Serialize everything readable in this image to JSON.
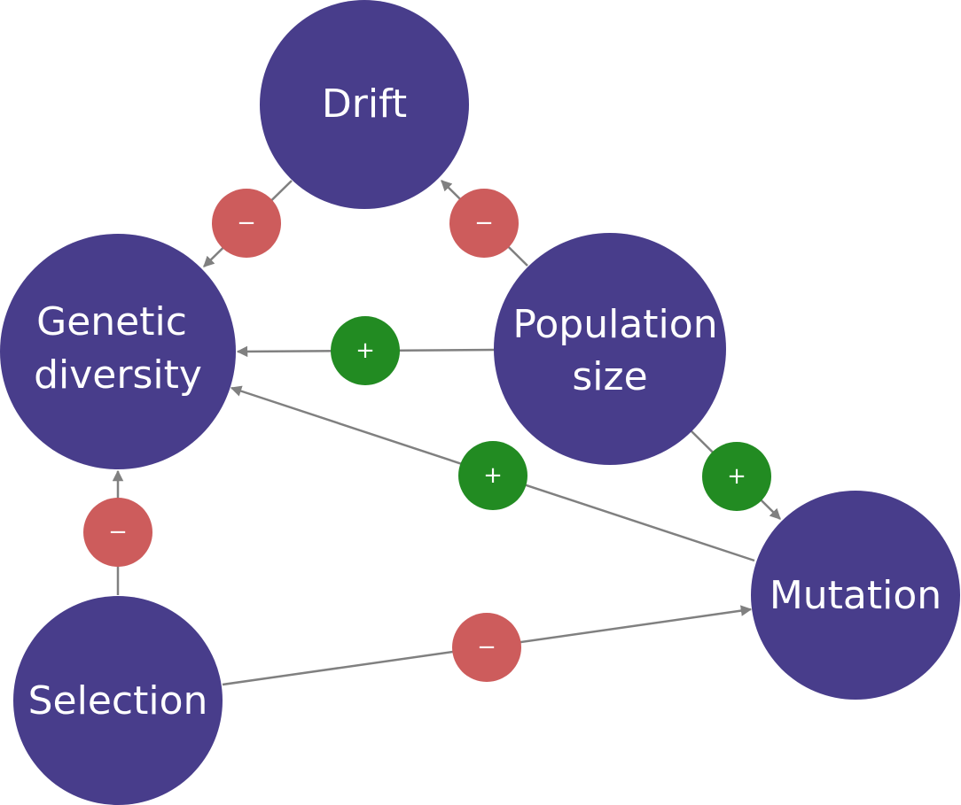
{
  "colors": {
    "node_fill": "#483D8B",
    "negative": "#CD5C5C",
    "positive": "#228B22",
    "edge": "#808080",
    "label": "#FFFFFF"
  },
  "nodes": {
    "drift": {
      "lines": [
        "Drift"
      ]
    },
    "genetic_diversity": {
      "lines": [
        "Genetic",
        "diversity"
      ]
    },
    "population_size": {
      "lines": [
        "Population",
        "size"
      ]
    },
    "mutation": {
      "lines": [
        "Mutation"
      ]
    },
    "selection": {
      "lines": [
        "Selection"
      ]
    }
  },
  "edges": [
    {
      "from": "drift",
      "to": "genetic_diversity",
      "sign": "−",
      "polarity": "negative"
    },
    {
      "from": "population_size",
      "to": "drift",
      "sign": "−",
      "polarity": "negative"
    },
    {
      "from": "population_size",
      "to": "genetic_diversity",
      "sign": "+",
      "polarity": "positive"
    },
    {
      "from": "mutation",
      "to": "genetic_diversity",
      "sign": "+",
      "polarity": "positive"
    },
    {
      "from": "population_size",
      "to": "mutation",
      "sign": "+",
      "polarity": "positive"
    },
    {
      "from": "selection",
      "to": "genetic_diversity",
      "sign": "−",
      "polarity": "negative"
    },
    {
      "from": "selection",
      "to": "mutation",
      "sign": "−",
      "polarity": "negative"
    }
  ]
}
